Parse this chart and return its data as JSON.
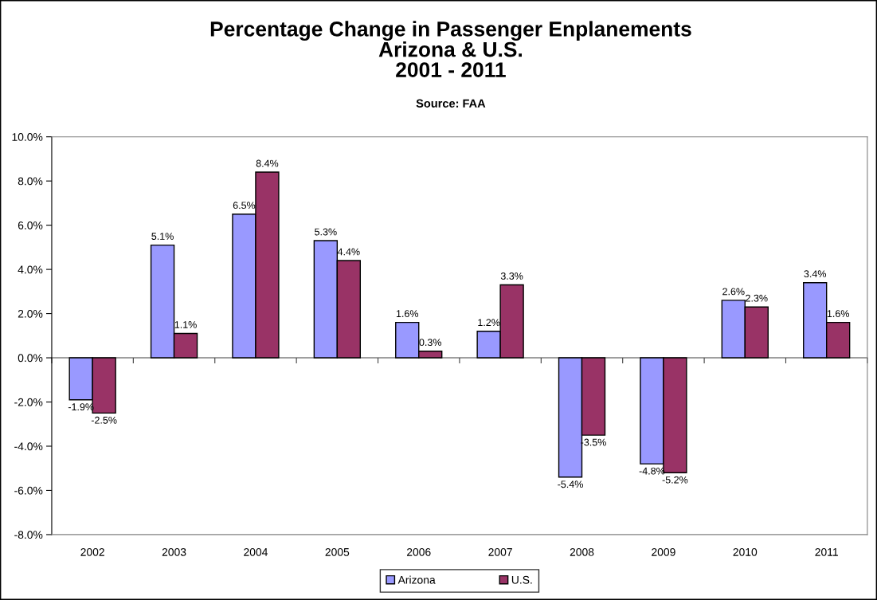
{
  "chart_data": {
    "type": "bar",
    "title": "Percentage Change in Passenger Enplanements\nArizona & U.S.\n2001 - 2011",
    "annotations": [
      "Source: FAA"
    ],
    "categories": [
      "2002",
      "2003",
      "2004",
      "2005",
      "2006",
      "2007",
      "2008",
      "2009",
      "2010",
      "2011"
    ],
    "series": [
      {
        "name": "Arizona",
        "color": "#9999ff",
        "values": [
          -1.9,
          5.1,
          6.5,
          5.3,
          1.6,
          1.2,
          -5.4,
          -4.8,
          2.6,
          3.4
        ],
        "value_labels": [
          "-1.9%",
          "5.1%",
          "6.5%",
          "5.3%",
          "1.6%",
          "1.2%",
          "-5.4%",
          "-4.8%",
          "2.6%",
          "3.4%"
        ]
      },
      {
        "name": "U.S.",
        "color": "#993366",
        "values": [
          -2.5,
          1.1,
          8.4,
          4.4,
          0.3,
          3.3,
          -3.5,
          -5.2,
          2.3,
          1.6
        ],
        "value_labels": [
          "-2.5%",
          "1.1%",
          "8.4%",
          "4.4%",
          "0.3%",
          "3.3%",
          "-3.5%",
          "-5.2%",
          "2.3%",
          "1.6%"
        ]
      }
    ],
    "ylim": [
      -8,
      10
    ],
    "yticks": [
      {
        "value": -8,
        "label": "-8.0%"
      },
      {
        "value": -6,
        "label": "-6.0%"
      },
      {
        "value": -4,
        "label": "-4.0%"
      },
      {
        "value": -2,
        "label": "-2.0%"
      },
      {
        "value": 0,
        "label": "0.0%"
      },
      {
        "value": 2,
        "label": "2.0%"
      },
      {
        "value": 4,
        "label": "4.0%"
      },
      {
        "value": 6,
        "label": "6.0%"
      },
      {
        "value": 8,
        "label": "8.0%"
      },
      {
        "value": 10,
        "label": "10.0%"
      }
    ],
    "legend": "bottom"
  }
}
